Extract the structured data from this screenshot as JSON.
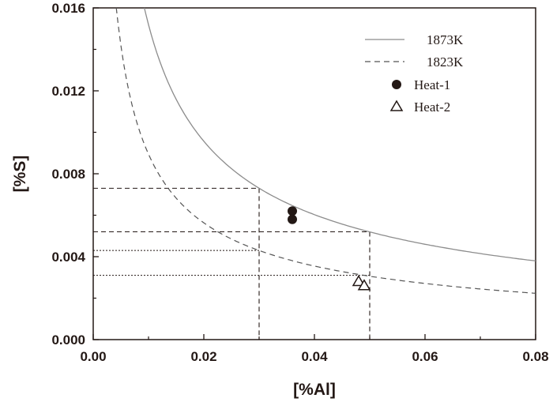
{
  "chart_data": {
    "type": "line",
    "xlabel": "[%Al]",
    "ylabel": "[%S]",
    "xlim": [
      0,
      0.08
    ],
    "ylim": [
      0,
      0.016
    ],
    "xticks": [
      "0.00",
      "0.02",
      "0.04",
      "0.06",
      "0.08"
    ],
    "yticks": [
      "0.000",
      "0.004",
      "0.008",
      "0.012",
      "0.016"
    ],
    "legend_position": "top-right",
    "series": [
      {
        "name": "1873K",
        "style": "solid",
        "color": "#8c8c8c",
        "formula": "S = 0.000705 / Al^(2/3)",
        "points": [
          [
            0.01,
            0.0152
          ],
          [
            0.02,
            0.0096
          ],
          [
            0.03,
            0.0073
          ],
          [
            0.04,
            0.006
          ],
          [
            0.05,
            0.0052
          ],
          [
            0.06,
            0.0046
          ],
          [
            0.07,
            0.0041
          ],
          [
            0.08,
            0.0038
          ]
        ]
      },
      {
        "name": "1823K",
        "style": "dashed",
        "color": "#555555",
        "formula": "S = 0.000415 / Al^(2/3)",
        "points": [
          [
            0.005,
            0.0142
          ],
          [
            0.01,
            0.0089
          ],
          [
            0.02,
            0.0056
          ],
          [
            0.03,
            0.0043
          ],
          [
            0.04,
            0.0035
          ],
          [
            0.05,
            0.0031
          ],
          [
            0.06,
            0.0027
          ],
          [
            0.07,
            0.0024
          ],
          [
            0.08,
            0.0022
          ]
        ]
      },
      {
        "name": "Heat-1",
        "style": "marker-filled-circle",
        "color": "#231815",
        "points": [
          [
            0.036,
            0.0062
          ],
          [
            0.036,
            0.0058
          ]
        ]
      },
      {
        "name": "Heat-2",
        "style": "marker-open-triangle",
        "color": "#231815",
        "points": [
          [
            0.048,
            0.0028
          ],
          [
            0.049,
            0.0026
          ]
        ]
      }
    ],
    "reference_lines": [
      {
        "style": "dashed",
        "x": 0.03,
        "y": 0.0073
      },
      {
        "style": "dashed",
        "x": 0.05,
        "y": 0.0052
      },
      {
        "style": "dotted",
        "x": 0.03,
        "y": 0.0043
      },
      {
        "style": "dotted",
        "x": 0.05,
        "y": 0.0031
      }
    ]
  }
}
